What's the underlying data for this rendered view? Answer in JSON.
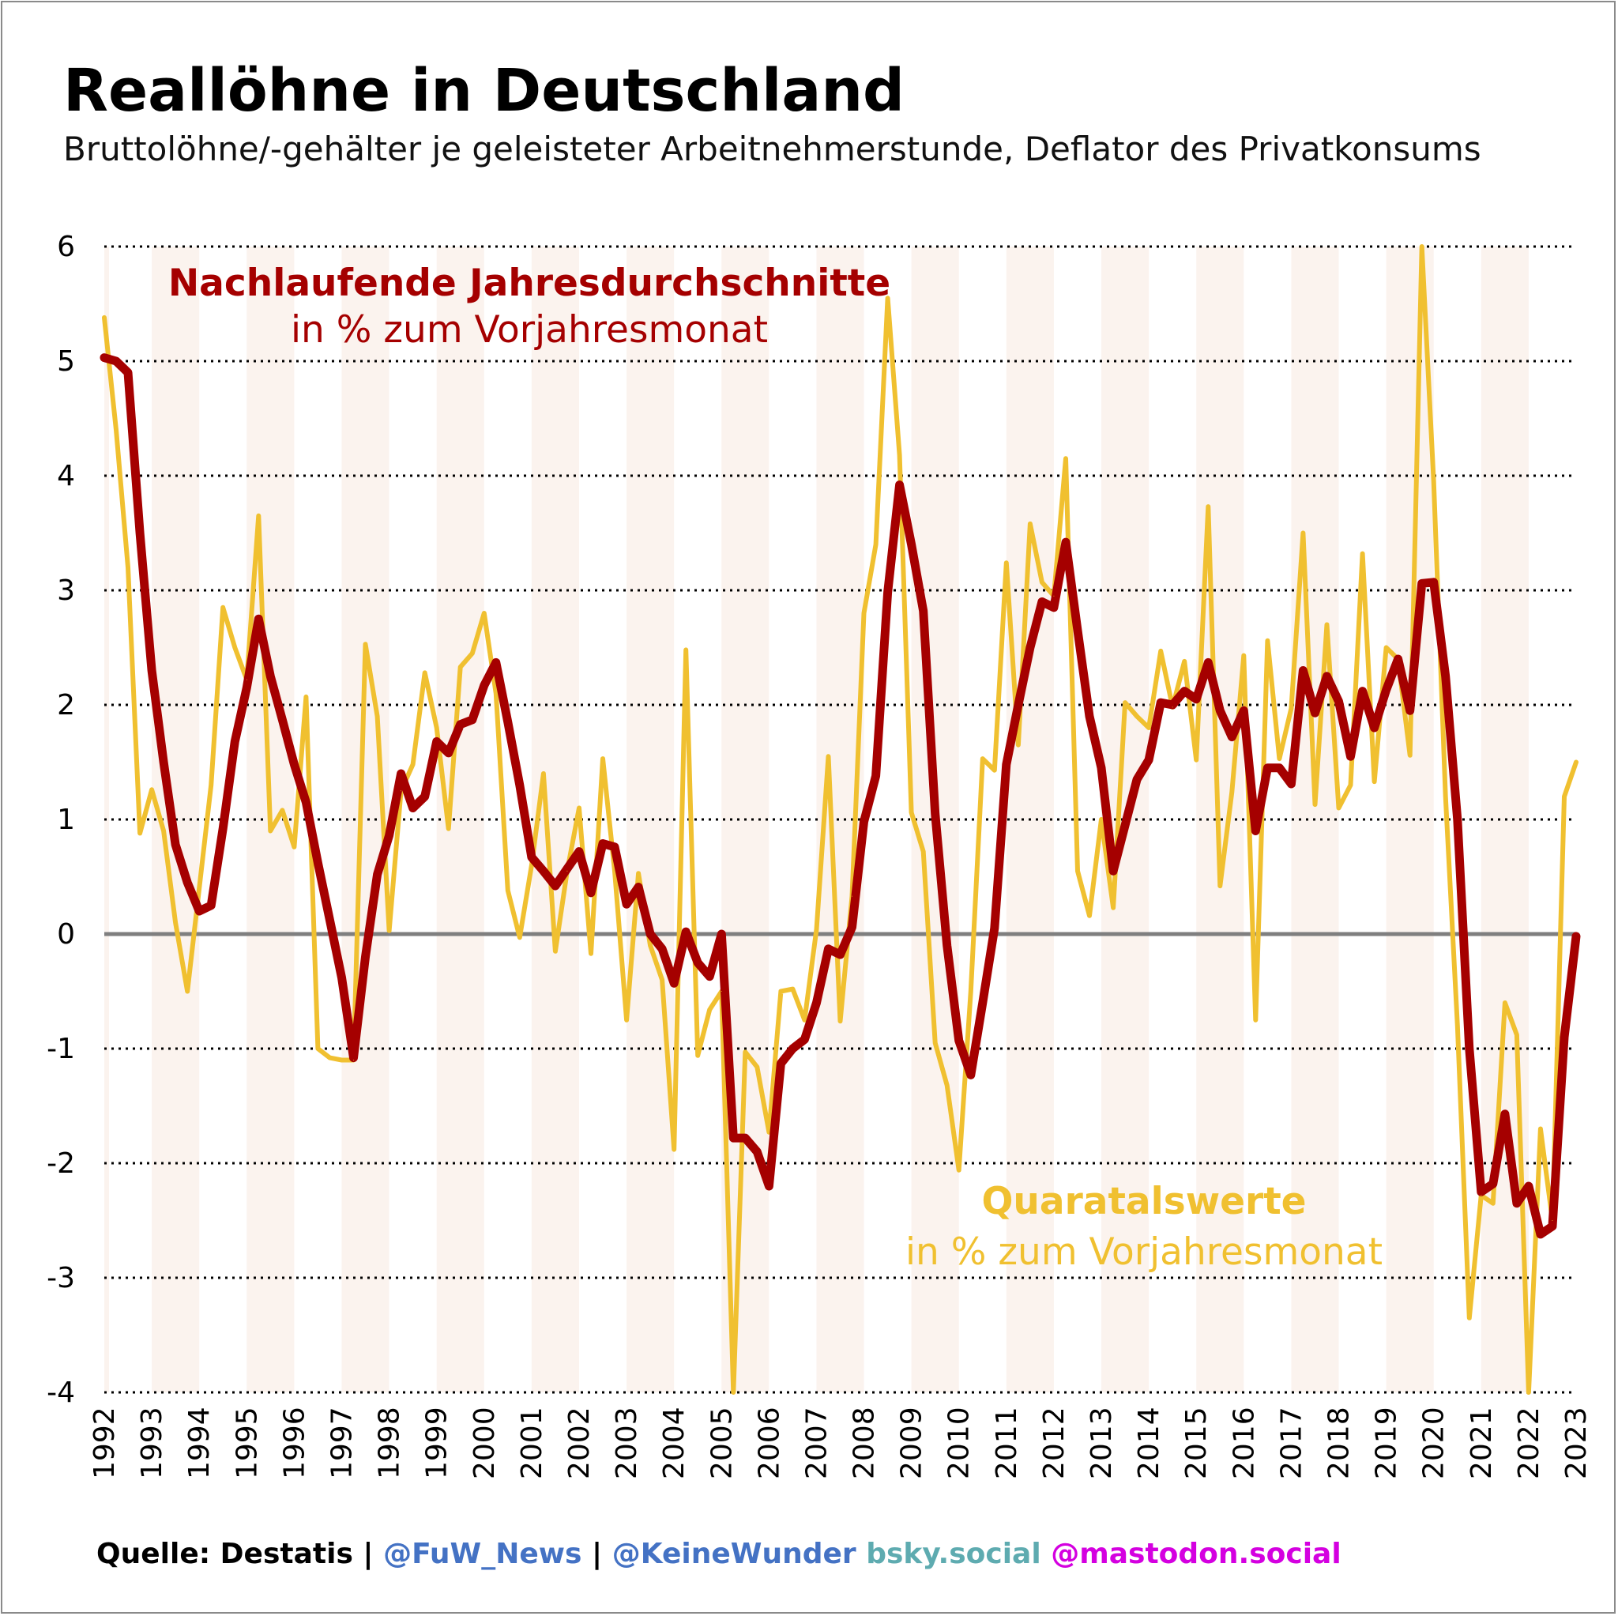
{
  "title": "Reallöhne in Deutschland",
  "subtitle": "Bruttolöhne/-gehälter je geleisteter Arbeitnehmerstunde, Deflator des Privatkonsums",
  "footer": {
    "source": "Quelle: Destatis",
    "sep1": " | ",
    "handle1": "@FuW_News",
    "sep2": " | ",
    "handle2": "@KeineWunder",
    "sep3": " ",
    "bsky": "bsky.social",
    "sep4": " ",
    "mastodon": "@mastodon.social"
  },
  "colors": {
    "annual": "#a50000",
    "quarterly": "#f0c030",
    "band": "#fbf3ee",
    "zero": "#7f7f7f",
    "grid": "#000000",
    "source_blue": "#4472c4",
    "bsky": "#5eabb0",
    "mastodon": "#d400e0"
  },
  "chart_data": {
    "type": "line",
    "ylim": [
      -4,
      6
    ],
    "yticks": [
      "6",
      "5",
      "4",
      "3",
      "2",
      "1",
      "0",
      "-1",
      "-2",
      "-3",
      "-4"
    ],
    "x_tick_labels": [
      "1992",
      "1993",
      "1994",
      "1995",
      "1996",
      "1997",
      "1998",
      "1999",
      "2000",
      "2001",
      "2002",
      "2003",
      "2004",
      "2005",
      "2006",
      "2007",
      "2008",
      "2009",
      "2010",
      "2011",
      "2012",
      "2013",
      "2014",
      "2015",
      "2016",
      "2017",
      "2018",
      "2019",
      "2020",
      "2021",
      "2022",
      "2023"
    ],
    "grid": true,
    "shaded_years": [
      "1993",
      "1995",
      "1997",
      "1999",
      "2001",
      "2003",
      "2005",
      "2007",
      "2009",
      "2011",
      "2013",
      "2015",
      "2017",
      "2019",
      "2021"
    ],
    "annotations": {
      "annual_title": "Nachlaufende Jahresdurchschnitte",
      "annual_sub": "in % zum Vorjahresmonat",
      "quarterly_title": "Quaratalswerte",
      "quarterly_sub": "in % zum Vorjahresmonat"
    },
    "series": [
      {
        "name": "Quaratalswerte",
        "x": [
          1992.0,
          1992.25,
          1992.5,
          1992.75,
          1993.0,
          1993.25,
          1993.5,
          1993.75,
          1994.0,
          1994.25,
          1994.5,
          1994.75,
          1995.0,
          1995.25,
          1995.5,
          1995.75,
          1996.0,
          1996.25,
          1996.5,
          1996.75,
          1997.0,
          1997.25,
          1997.5,
          1997.75,
          1998.0,
          1998.25,
          1998.5,
          1998.75,
          1999.0,
          1999.25,
          1999.5,
          1999.75,
          2000.0,
          2000.25,
          2000.5,
          2000.75,
          2001.0,
          2001.25,
          2001.5,
          2001.75,
          2002.0,
          2002.25,
          2002.5,
          2002.75,
          2003.0,
          2003.25,
          2003.5,
          2003.75,
          2004.0,
          2004.25,
          2004.5,
          2004.75,
          2005.0,
          2005.25,
          2005.5,
          2005.75,
          2006.0,
          2006.25,
          2006.5,
          2006.75,
          2007.0,
          2007.25,
          2007.5,
          2007.75,
          2008.0,
          2008.25,
          2008.5,
          2008.75,
          2009.0,
          2009.25,
          2009.5,
          2009.75,
          2010.0,
          2010.25,
          2010.5,
          2010.75,
          2011.0,
          2011.25,
          2011.5,
          2011.75,
          2012.0,
          2012.25,
          2012.5,
          2012.75,
          2013.0,
          2013.25,
          2013.5,
          2013.75,
          2014.0,
          2014.25,
          2014.5,
          2014.75,
          2015.0,
          2015.25,
          2015.5,
          2015.75,
          2016.0,
          2016.25,
          2016.5,
          2016.75,
          2017.0,
          2017.25,
          2017.5,
          2017.75,
          2018.0,
          2018.25,
          2018.5,
          2018.75,
          2019.0,
          2019.25,
          2019.5,
          2019.75,
          2020.0,
          2020.25,
          2020.5,
          2020.75,
          2021.0,
          2021.25,
          2021.5,
          2021.75,
          2022.0,
          2022.25,
          2022.5,
          2022.75,
          2023.0
        ],
        "values": [
          5.38,
          4.4,
          3.2,
          0.88,
          1.26,
          0.9,
          0.1,
          -0.5,
          0.4,
          1.3,
          2.85,
          2.5,
          2.22,
          3.65,
          0.9,
          1.08,
          0.76,
          2.07,
          -1.0,
          -1.08,
          -1.1,
          -1.1,
          2.53,
          1.9,
          0.03,
          1.25,
          1.48,
          2.28,
          1.8,
          0.92,
          2.33,
          2.45,
          2.8,
          2.1,
          0.38,
          -0.03,
          0.6,
          1.4,
          -0.15,
          0.55,
          1.1,
          -0.17,
          1.53,
          0.55,
          -0.75,
          0.53,
          -0.1,
          -0.4,
          -1.88,
          2.48,
          -1.06,
          -0.66,
          -0.5,
          -4.05,
          -1.03,
          -1.16,
          -1.73,
          -0.5,
          -0.48,
          -0.75,
          0.04,
          1.55,
          -0.76,
          0.33,
          2.8,
          3.4,
          5.55,
          4.18,
          1.06,
          0.72,
          -0.95,
          -1.32,
          -2.06,
          -0.5,
          1.53,
          1.43,
          3.24,
          1.65,
          3.58,
          3.07,
          2.95,
          4.15,
          0.55,
          0.16,
          1.0,
          0.23,
          2.02,
          1.9,
          1.8,
          2.47,
          1.98,
          2.38,
          1.52,
          3.73,
          0.42,
          1.24,
          2.43,
          -0.75,
          2.56,
          1.53,
          1.97,
          3.5,
          1.13,
          2.7,
          1.1,
          1.3,
          3.32,
          1.33,
          2.5,
          2.4,
          1.56,
          6.0,
          3.95,
          1.2,
          -0.8,
          -3.35,
          -2.28,
          -2.35,
          -0.6,
          -0.88,
          -4.0,
          -1.7,
          -2.5,
          1.2,
          1.5
        ]
      },
      {
        "name": "Nachlaufende Jahresdurchschnitte",
        "x": [
          1992.0,
          1992.25,
          1992.5,
          1992.75,
          1993.0,
          1993.25,
          1993.5,
          1993.75,
          1994.0,
          1994.25,
          1994.5,
          1994.75,
          1995.0,
          1995.25,
          1995.5,
          1995.75,
          1996.0,
          1996.25,
          1996.5,
          1996.75,
          1997.0,
          1997.25,
          1997.5,
          1997.75,
          1998.0,
          1998.25,
          1998.5,
          1998.75,
          1999.0,
          1999.25,
          1999.5,
          1999.75,
          2000.0,
          2000.25,
          2000.5,
          2000.75,
          2001.0,
          2001.25,
          2001.5,
          2001.75,
          2002.0,
          2002.25,
          2002.5,
          2002.75,
          2003.0,
          2003.25,
          2003.5,
          2003.75,
          2004.0,
          2004.25,
          2004.5,
          2004.75,
          2005.0,
          2005.25,
          2005.5,
          2005.75,
          2006.0,
          2006.25,
          2006.5,
          2006.75,
          2007.0,
          2007.25,
          2007.5,
          2007.75,
          2008.0,
          2008.25,
          2008.5,
          2008.75,
          2009.0,
          2009.25,
          2009.5,
          2009.75,
          2010.0,
          2010.25,
          2010.5,
          2010.75,
          2011.0,
          2011.25,
          2011.5,
          2011.75,
          2012.0,
          2012.25,
          2012.5,
          2012.75,
          2013.0,
          2013.25,
          2013.5,
          2013.75,
          2014.0,
          2014.25,
          2014.5,
          2014.75,
          2015.0,
          2015.25,
          2015.5,
          2015.75,
          2016.0,
          2016.25,
          2016.5,
          2016.75,
          2017.0,
          2017.25,
          2017.5,
          2017.75,
          2018.0,
          2018.25,
          2018.5,
          2018.75,
          2019.0,
          2019.25,
          2019.5,
          2019.75,
          2020.0,
          2020.25,
          2020.5,
          2020.75,
          2021.0,
          2021.25,
          2021.5,
          2021.75,
          2022.0,
          2022.25,
          2022.5,
          2022.75,
          2023.0
        ],
        "values": [
          5.03,
          5.0,
          4.9,
          3.5,
          2.3,
          1.5,
          0.78,
          0.45,
          0.2,
          0.25,
          0.92,
          1.68,
          2.15,
          2.75,
          2.25,
          1.87,
          1.48,
          1.15,
          0.62,
          0.12,
          -0.38,
          -1.08,
          -0.2,
          0.52,
          0.86,
          1.4,
          1.1,
          1.2,
          1.68,
          1.58,
          1.83,
          1.87,
          2.17,
          2.37,
          1.85,
          1.3,
          0.67,
          0.55,
          0.42,
          0.57,
          0.72,
          0.36,
          0.79,
          0.76,
          0.26,
          0.41,
          0.0,
          -0.13,
          -0.43,
          0.02,
          -0.25,
          -0.37,
          0.0,
          -1.78,
          -1.78,
          -1.9,
          -2.2,
          -1.13,
          -1.0,
          -0.92,
          -0.6,
          -0.13,
          -0.18,
          0.06,
          0.98,
          1.38,
          2.98,
          3.92,
          3.4,
          2.82,
          1.05,
          -0.1,
          -0.93,
          -1.23,
          -0.6,
          0.05,
          1.48,
          2.0,
          2.5,
          2.9,
          2.85,
          3.42,
          2.65,
          1.9,
          1.45,
          0.55,
          0.95,
          1.35,
          1.52,
          2.02,
          2.0,
          2.12,
          2.05,
          2.37,
          1.95,
          1.72,
          1.95,
          0.9,
          1.45,
          1.45,
          1.31,
          2.3,
          1.93,
          2.25,
          2.03,
          1.55,
          2.12,
          1.8,
          2.13,
          2.4,
          1.95,
          3.06,
          3.07,
          2.25,
          1.0,
          -1.0,
          -2.25,
          -2.18,
          -1.57,
          -2.35,
          -2.2,
          -2.62,
          -2.55,
          -0.9,
          -0.02
        ]
      }
    ]
  }
}
